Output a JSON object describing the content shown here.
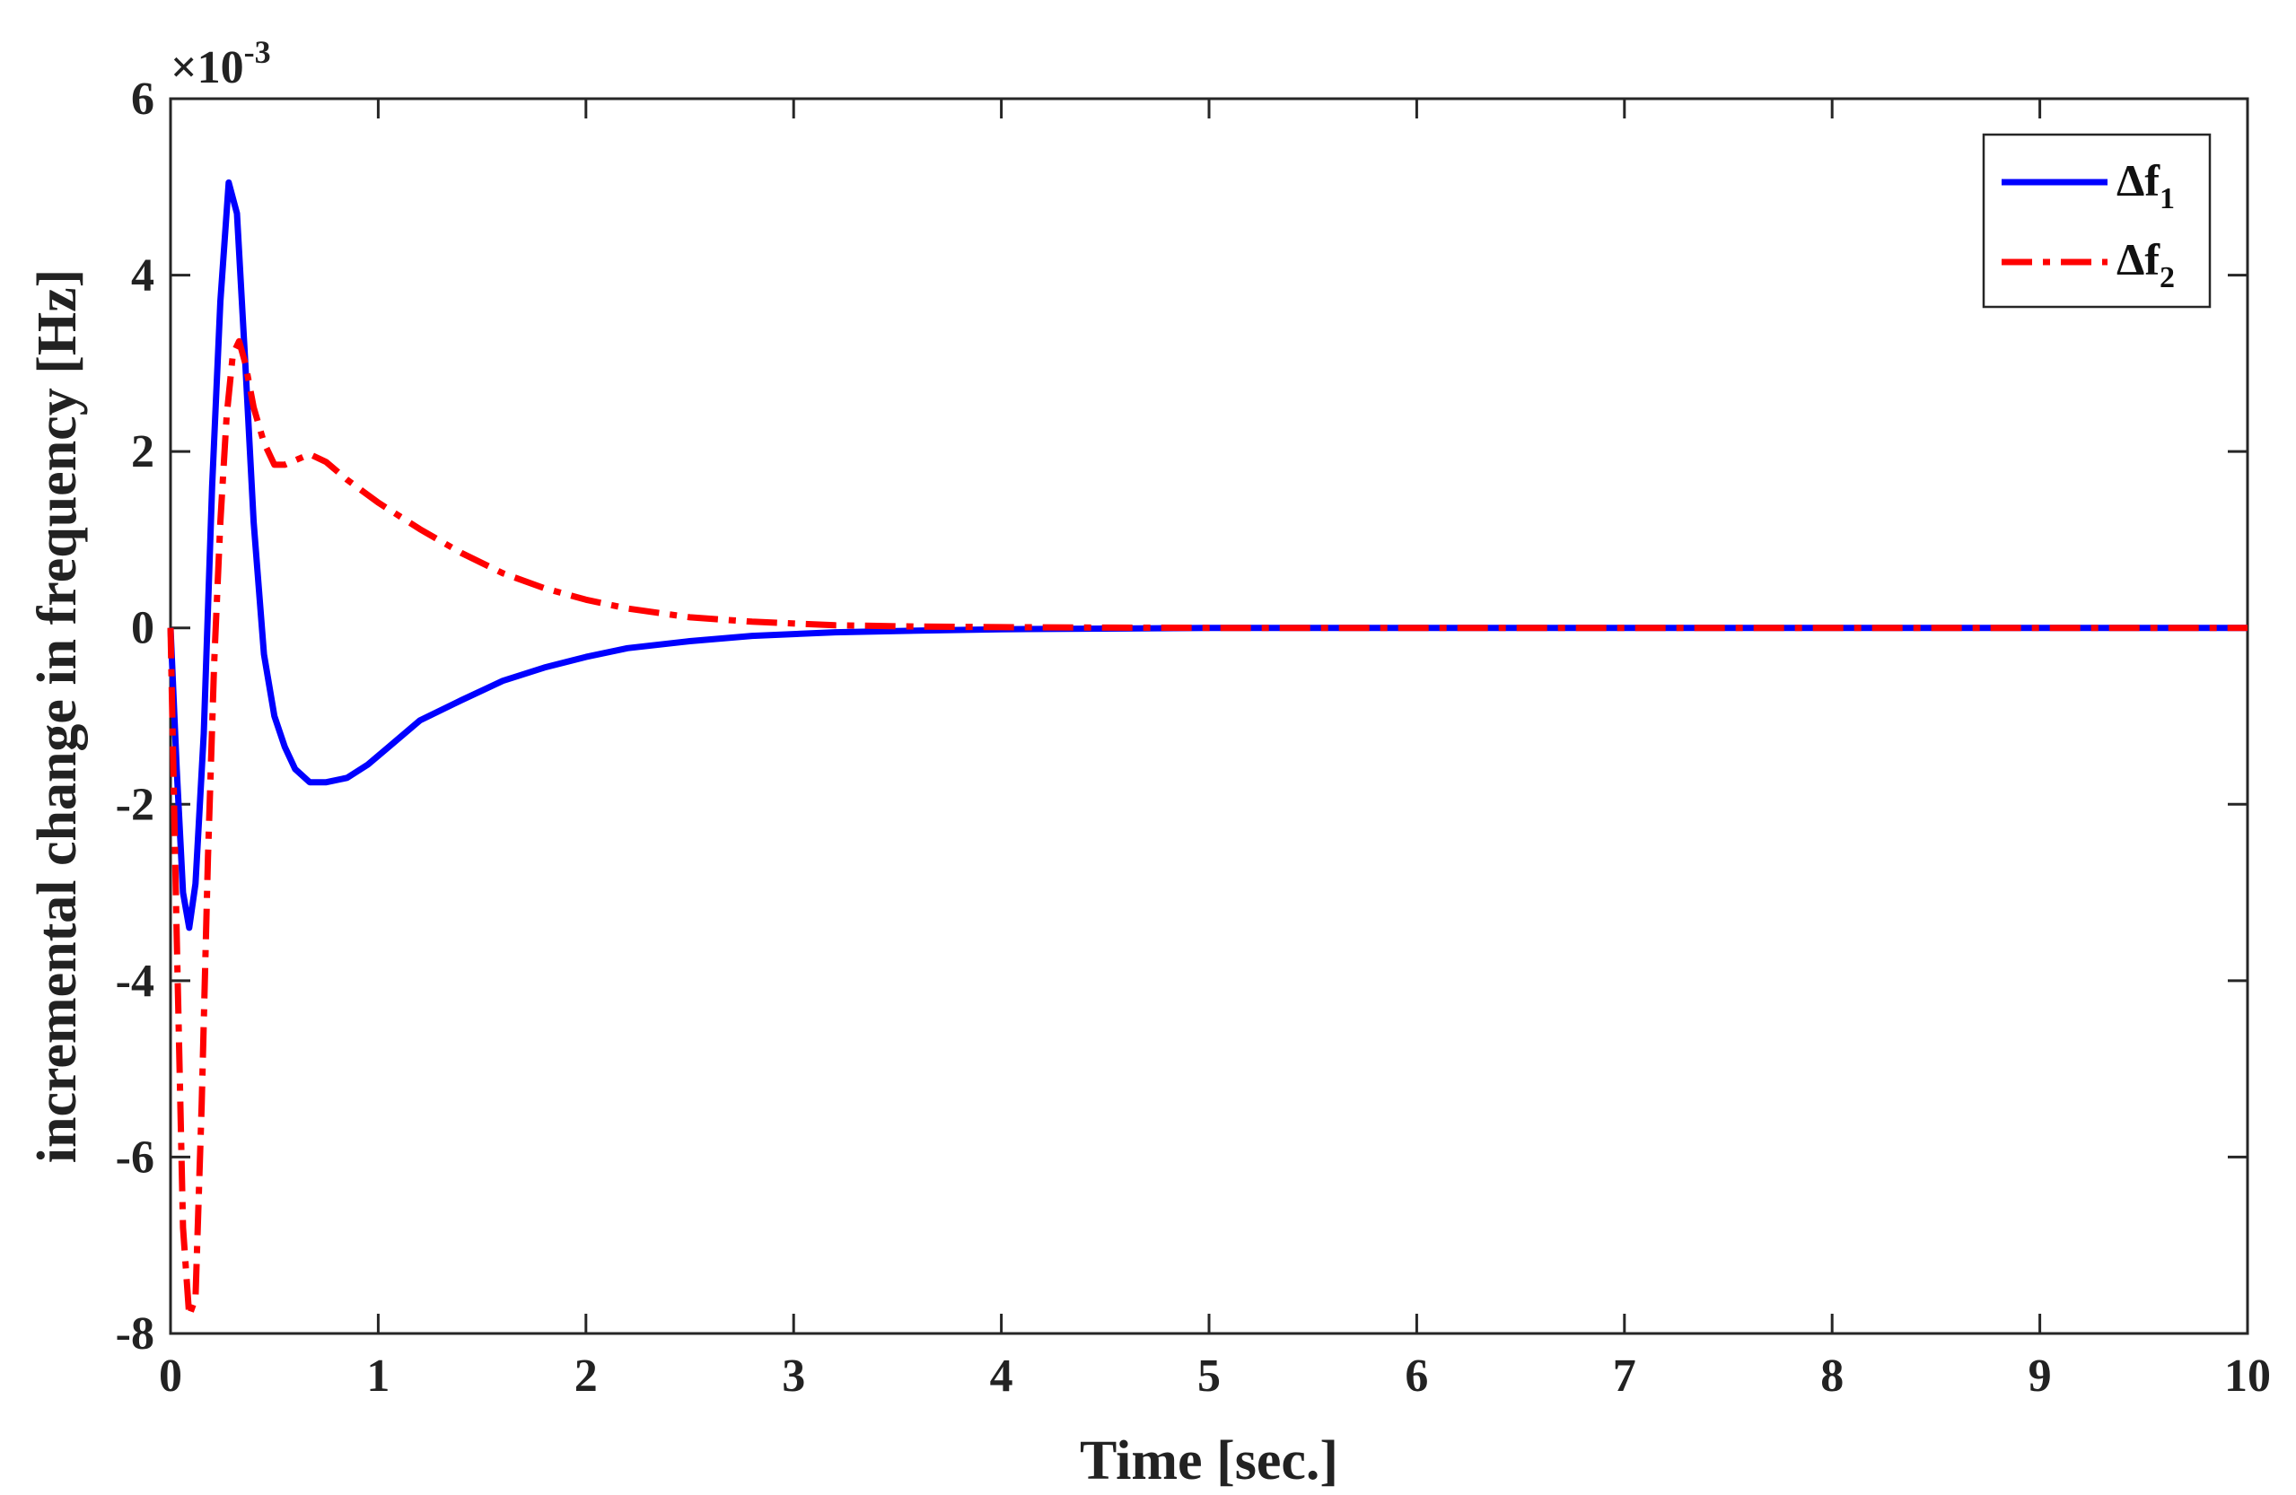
{
  "chart_data": {
    "type": "line",
    "title": "",
    "xlabel": "Time [sec.]",
    "ylabel": "incremental change in frequency [Hz]",
    "y_exponent_label": "×10",
    "y_exponent_power": "-3",
    "xlim": [
      0,
      10
    ],
    "ylim": [
      -8,
      6
    ],
    "x_ticks": [
      0,
      1,
      2,
      3,
      4,
      5,
      6,
      7,
      8,
      9,
      10
    ],
    "x_tick_labels": [
      "0",
      "1",
      "2",
      "3",
      "4",
      "5",
      "6",
      "7",
      "8",
      "9",
      "10"
    ],
    "y_ticks": [
      -8,
      -6,
      -4,
      -2,
      0,
      2,
      4,
      6
    ],
    "y_tick_labels": [
      "-8",
      "-6",
      "-4",
      "-2",
      "0",
      "2",
      "4",
      "6"
    ],
    "grid": false,
    "legend_position": "top-right",
    "legend_symbol": "Δf",
    "series": [
      {
        "name": "Δf1",
        "legend_subscript": "1",
        "color": "#0000ff",
        "style": "solid",
        "x": [
          0,
          0.03,
          0.06,
          0.09,
          0.12,
          0.16,
          0.2,
          0.24,
          0.28,
          0.32,
          0.36,
          0.4,
          0.45,
          0.5,
          0.55,
          0.6,
          0.67,
          0.75,
          0.85,
          0.95,
          1.05,
          1.2,
          1.4,
          1.6,
          1.8,
          2.0,
          2.2,
          2.5,
          2.8,
          3.2,
          3.6,
          4.0,
          4.5,
          5,
          6,
          7,
          8,
          9,
          10
        ],
        "y": [
          0,
          -1.6,
          -3.0,
          -3.4,
          -2.9,
          -1.2,
          1.6,
          3.7,
          5.05,
          4.7,
          3.0,
          1.2,
          -0.3,
          -1.0,
          -1.35,
          -1.6,
          -1.75,
          -1.75,
          -1.7,
          -1.55,
          -1.35,
          -1.05,
          -0.82,
          -0.6,
          -0.45,
          -0.33,
          -0.23,
          -0.15,
          -0.09,
          -0.05,
          -0.03,
          -0.015,
          -0.008,
          0,
          0,
          0,
          0,
          0,
          0
        ]
      },
      {
        "name": "Δf2",
        "legend_subscript": "2",
        "color": "#ff0000",
        "style": "dashdot",
        "x": [
          0,
          0.03,
          0.06,
          0.09,
          0.12,
          0.15,
          0.18,
          0.21,
          0.24,
          0.27,
          0.3,
          0.33,
          0.36,
          0.4,
          0.45,
          0.5,
          0.55,
          0.6,
          0.67,
          0.75,
          0.85,
          1.0,
          1.2,
          1.4,
          1.6,
          1.8,
          2.0,
          2.2,
          2.5,
          2.8,
          3.2,
          3.6,
          4.0,
          4.5,
          5,
          6,
          7,
          8,
          9,
          10
        ],
        "y": [
          0,
          -3.5,
          -6.8,
          -7.8,
          -7.6,
          -5.4,
          -2.6,
          -0.4,
          1.2,
          2.4,
          3.1,
          3.25,
          3.0,
          2.5,
          2.1,
          1.85,
          1.85,
          1.9,
          1.97,
          1.88,
          1.68,
          1.42,
          1.12,
          0.85,
          0.62,
          0.45,
          0.32,
          0.22,
          0.12,
          0.07,
          0.03,
          0.015,
          0.008,
          0.003,
          0,
          0,
          0,
          0,
          0,
          0
        ]
      }
    ]
  }
}
